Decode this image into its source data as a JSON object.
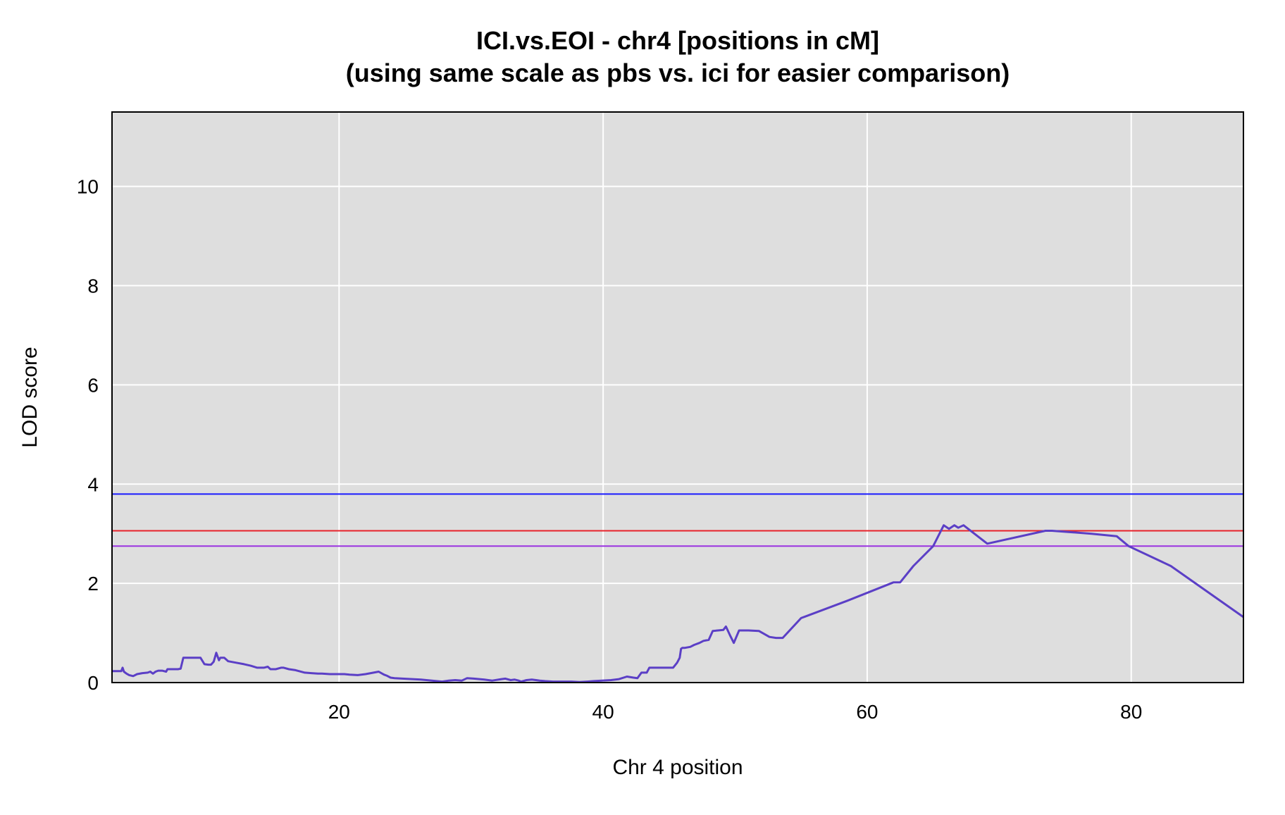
{
  "chart_data": {
    "type": "line",
    "title": "ICI.vs.EOI - chr4 [positions in cM]",
    "subtitle": "(using same scale as pbs  vs. ici for easier comparison)",
    "xlabel": "Chr 4 position",
    "ylabel": "LOD score",
    "xlim": [
      2.8,
      88.5
    ],
    "ylim": [
      0,
      11.5
    ],
    "xticks": [
      20,
      40,
      60,
      80
    ],
    "yticks": [
      0,
      2,
      4,
      6,
      8,
      10
    ],
    "grid": true,
    "background": "#dedede",
    "series": [
      {
        "color": "#5b3fc6",
        "x": [
          2.8,
          3.5,
          3.6,
          3.7,
          3.9,
          4.1,
          4.4,
          4.7,
          5.1,
          5.5,
          5.7,
          5.9,
          6.1,
          6.3,
          6.6,
          6.9,
          7.0,
          7.3,
          7.8,
          8.0,
          8.2,
          8.6,
          9.0,
          9.5,
          9.8,
          10.1,
          10.3,
          10.5,
          10.7,
          10.9,
          11.0,
          11.3,
          11.6,
          12.2,
          12.8,
          13.3,
          13.8,
          14.3,
          14.6,
          14.8,
          15.2,
          15.6,
          15.8,
          16.2,
          16.7,
          17.4,
          17.9,
          18.4,
          18.7,
          19.3,
          20.0,
          20.4,
          20.8,
          21.4,
          22.0,
          22.4,
          23.0,
          23.4,
          23.6,
          23.9,
          24.2,
          24.8,
          26.2,
          27.8,
          28.3,
          28.8,
          29.3,
          29.7,
          30.2,
          31.0,
          31.6,
          32.3,
          32.6,
          33.0,
          33.3,
          33.6,
          33.8,
          34.2,
          34.6,
          35.2,
          35.6,
          36.2,
          36.9,
          37.6,
          38.2,
          38.8,
          39.3,
          39.9,
          40.6,
          41.2,
          41.8,
          42.3,
          42.6,
          42.9,
          43.3,
          43.5,
          43.8,
          44.0,
          44.3,
          44.7,
          45.3,
          45.6,
          45.8,
          45.9,
          46.0,
          46.2,
          46.6,
          46.9,
          47.3,
          47.6,
          48.0,
          48.3,
          48.7,
          49.1,
          49.3,
          49.6,
          49.9,
          50.3,
          51.0,
          51.8,
          52.6,
          53.1,
          53.6,
          55.0,
          58.5,
          62.0,
          62.5,
          63.5,
          65.0,
          65.8,
          66.2,
          66.6,
          66.9,
          67.3,
          69.1,
          73.5,
          74.0,
          77.0,
          78.9,
          79.8,
          83.0,
          88.5
        ],
        "y": [
          0.23,
          0.23,
          0.3,
          0.22,
          0.18,
          0.15,
          0.13,
          0.17,
          0.19,
          0.2,
          0.22,
          0.18,
          0.22,
          0.24,
          0.24,
          0.22,
          0.27,
          0.27,
          0.27,
          0.28,
          0.5,
          0.5,
          0.5,
          0.5,
          0.37,
          0.36,
          0.36,
          0.42,
          0.6,
          0.45,
          0.5,
          0.5,
          0.43,
          0.4,
          0.37,
          0.34,
          0.3,
          0.3,
          0.32,
          0.27,
          0.27,
          0.3,
          0.3,
          0.27,
          0.25,
          0.2,
          0.19,
          0.18,
          0.18,
          0.17,
          0.17,
          0.17,
          0.16,
          0.15,
          0.17,
          0.19,
          0.22,
          0.16,
          0.14,
          0.1,
          0.09,
          0.08,
          0.06,
          0.02,
          0.04,
          0.05,
          0.04,
          0.09,
          0.08,
          0.06,
          0.04,
          0.07,
          0.08,
          0.05,
          0.06,
          0.04,
          0.02,
          0.05,
          0.06,
          0.04,
          0.03,
          0.02,
          0.02,
          0.02,
          0.01,
          0.02,
          0.03,
          0.04,
          0.05,
          0.07,
          0.12,
          0.1,
          0.09,
          0.2,
          0.2,
          0.3,
          0.3,
          0.3,
          0.3,
          0.3,
          0.3,
          0.4,
          0.5,
          0.68,
          0.7,
          0.7,
          0.72,
          0.76,
          0.8,
          0.84,
          0.86,
          1.04,
          1.05,
          1.06,
          1.13,
          0.96,
          0.8,
          1.05,
          1.05,
          1.04,
          0.92,
          0.9,
          0.9,
          1.3,
          1.65,
          2.02,
          2.02,
          2.35,
          2.75,
          3.17,
          3.1,
          3.17,
          3.12,
          3.17,
          2.8,
          3.06,
          3.06,
          3.0,
          2.95,
          2.75,
          2.35,
          1.32
        ]
      }
    ],
    "thresholds": [
      {
        "value": 3.8,
        "color": "#1a1aff"
      },
      {
        "value": 3.06,
        "color": "#e8222a"
      },
      {
        "value": 2.75,
        "color": "#9a33e0"
      }
    ]
  }
}
